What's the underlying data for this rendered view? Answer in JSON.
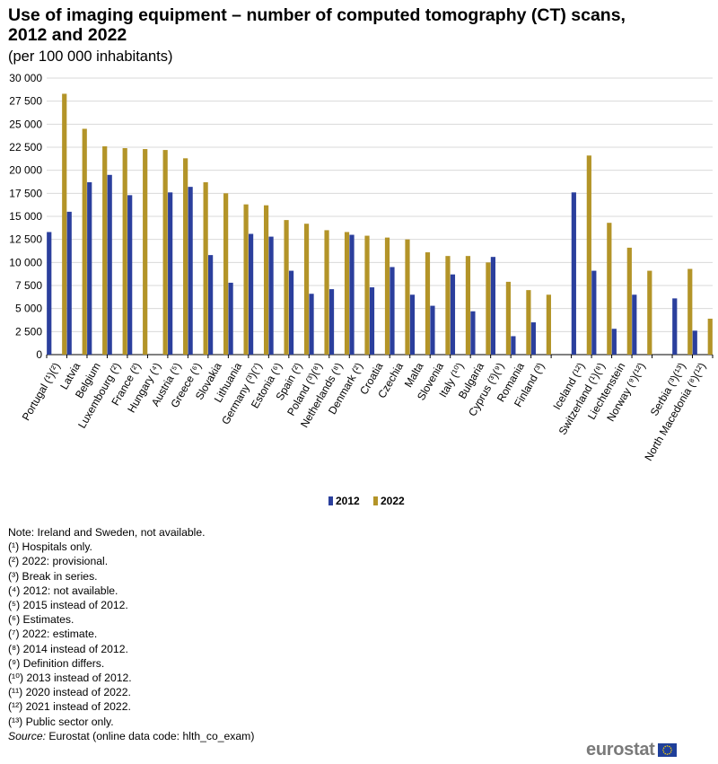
{
  "title": "Use of imaging equipment – number of computed tomography (CT) scans, 2012 and 2022",
  "subtitle": "(per 100 000 inhabitants)",
  "chart_data": {
    "type": "bar",
    "title": "Use of imaging equipment – number of computed tomography (CT) scans, 2012 and 2022",
    "subtitle": "(per 100 000 inhabitants)",
    "categories": [
      "Portugal (¹)(²)",
      "Latvia",
      "Belgium",
      "Luxembourg (²)",
      "France (²)",
      "Hungary (⁴)",
      "Austria (⁵)",
      "Greece (⁶)",
      "Slovakia",
      "Lithuania",
      "Germany (³)(⁷)",
      "Estonia (⁶)",
      "Spain (²)",
      "Poland (³)(⁸)",
      "Netherlands (⁸)",
      "Denmark (²)",
      "Croatia",
      "Czechia",
      "Malta",
      "Slovenia",
      "Italy (¹⁰)",
      "Bulgaria",
      "Cyprus (³)(⁹)",
      "Romania",
      "Finland (³)",
      "",
      "Iceland (¹²)",
      "Switzerland (¹)(⁸)",
      "Liechtenstein",
      "Norway (⁹)(¹²)",
      "",
      "Serbia (³)(¹³)",
      "North Macedonia (⁸)(¹²)"
    ],
    "series": [
      {
        "name": "2012",
        "color": "#2b3f9d",
        "values": [
          13300,
          15500,
          18700,
          19500,
          17300,
          null,
          17600,
          18200,
          10800,
          7800,
          13100,
          12800,
          9100,
          6600,
          7100,
          13000,
          7300,
          9500,
          6500,
          5300,
          8700,
          4700,
          10600,
          2000,
          3500,
          null,
          17600,
          9100,
          2800,
          6500,
          null,
          6100,
          2600
        ]
      },
      {
        "name": "2022",
        "color": "#b39428",
        "values": [
          28300,
          24500,
          22600,
          22400,
          22300,
          22200,
          21300,
          18700,
          17500,
          16300,
          16200,
          14600,
          14200,
          13500,
          13300,
          12900,
          12700,
          12500,
          11100,
          10700,
          10700,
          10000,
          7900,
          7000,
          6500,
          null,
          21600,
          14300,
          11600,
          9100,
          null,
          9300,
          3900
        ]
      }
    ],
    "y_ticks": [
      "0",
      "2 500",
      "5 000",
      "7 500",
      "10 000",
      "12 500",
      "15 000",
      "17 500",
      "20 000",
      "22 500",
      "25 000",
      "27 500",
      "30 000"
    ],
    "ylim": [
      0,
      30000
    ],
    "grid": true,
    "legend_position": "bottom-center"
  },
  "notes": [
    "Note: Ireland and Sweden, not available.",
    "(¹) Hospitals only.",
    "(²) 2022: provisional.",
    "(³) Break in series.",
    "(⁴) 2012: not available.",
    "(⁵) 2015 instead of 2012.",
    "(⁶) Estimates.",
    "(⁷) 2022: estimate.",
    "(⁸) 2014 instead of 2012.",
    "(⁹) Definition differs.",
    "(¹⁰) 2013 instead of 2012.",
    "(¹¹) 2020 instead of 2022.",
    "(¹²) 2021 instead of 2022.",
    "(¹³) Public sector only."
  ],
  "source": {
    "label": "Source:",
    "text": " Eurostat (online data code: hlth_co_exam)"
  },
  "logo": {
    "text": "eurostat",
    "icon": "eu-flag-icon"
  }
}
